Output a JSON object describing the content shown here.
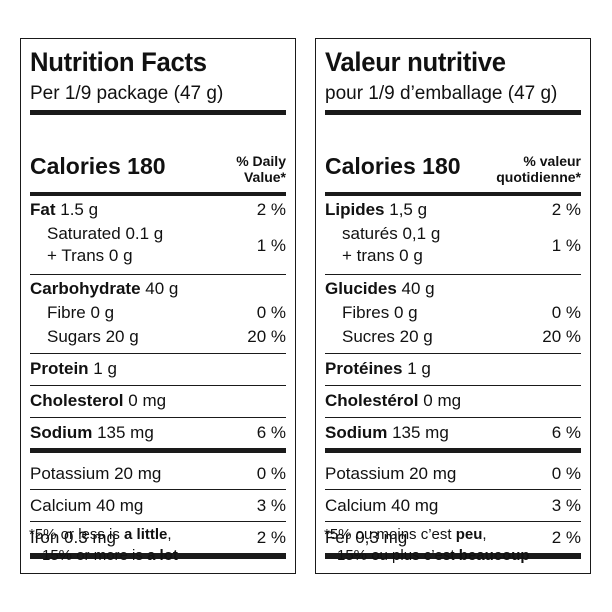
{
  "en": {
    "title": "Nutrition Facts",
    "serving": "Per 1/9 package (47 g)",
    "calories_label": "Calories 180",
    "dv_line1": "% Daily",
    "dv_line2": "Value*",
    "fat": {
      "name": "Fat",
      "amount": "1.5 g",
      "pct": "2 %"
    },
    "saturated": {
      "label": "Saturated 0.1 g"
    },
    "trans": {
      "label": "+ Trans 0 g"
    },
    "sat_trans_pct": "1 %",
    "carbohydrate": {
      "name": "Carbohydrate",
      "amount": "40 g"
    },
    "fibre": {
      "label": "Fibre 0 g",
      "pct": "0 %"
    },
    "sugars": {
      "label": "Sugars 20 g",
      "pct": "20 %"
    },
    "protein": {
      "name": "Protein",
      "amount": "1 g"
    },
    "cholesterol": {
      "name": "Cholesterol",
      "amount": "0 mg"
    },
    "sodium": {
      "name": "Sodium",
      "amount": "135 mg",
      "pct": "6 %"
    },
    "potassium": {
      "label": "Potassium 20 mg",
      "pct": "0 %"
    },
    "calcium": {
      "label": "Calcium 40 mg",
      "pct": "3 %"
    },
    "iron": {
      "label": "Iron 0.3 mg",
      "pct": "2 %"
    },
    "foot1_pre": "*5% or less is ",
    "foot1_bold": "a little",
    "foot1_post": ",",
    "foot2_pre": "15% or more is ",
    "foot2_bold": "a lot"
  },
  "fr": {
    "title": "Valeur nutritive",
    "serving": "pour 1/9 d’emballage (47 g)",
    "calories_label": "Calories 180",
    "dv_line1": "% valeur",
    "dv_line2": "quotidienne*",
    "fat": {
      "name": "Lipides",
      "amount": "1,5 g",
      "pct": "2 %"
    },
    "saturated": {
      "label": "saturés 0,1 g"
    },
    "trans": {
      "label": "+ trans 0 g"
    },
    "sat_trans_pct": "1 %",
    "carbohydrate": {
      "name": "Glucides",
      "amount": "40 g"
    },
    "fibre": {
      "label": "Fibres 0 g",
      "pct": "0 %"
    },
    "sugars": {
      "label": "Sucres 20 g",
      "pct": "20 %"
    },
    "protein": {
      "name": "Protéines",
      "amount": "1 g"
    },
    "cholesterol": {
      "name": "Cholestérol",
      "amount": "0 mg"
    },
    "sodium": {
      "name": "Sodium",
      "amount": "135 mg",
      "pct": "6 %"
    },
    "potassium": {
      "label": "Potassium 20 mg",
      "pct": "0 %"
    },
    "calcium": {
      "label": "Calcium 40 mg",
      "pct": "3 %"
    },
    "iron": {
      "label": "Fer 0,3 mg",
      "pct": "2 %"
    },
    "foot1_pre": "*5% ou moins c’est ",
    "foot1_bold": "peu",
    "foot1_post": ",",
    "foot2_pre": "15% ou plus c’est ",
    "foot2_bold": "beaucoup"
  }
}
